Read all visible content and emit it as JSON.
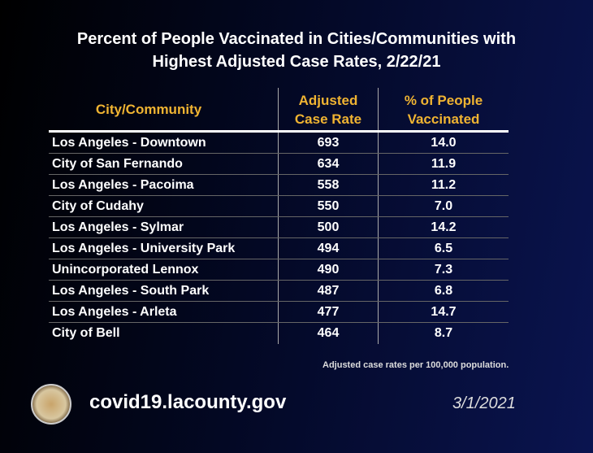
{
  "title": {
    "line1": "Percent of People Vaccinated in Cities/Communities with",
    "line2": "Highest Adjusted Case Rates, 2/22/21"
  },
  "headers": {
    "city": "City/Community",
    "rate_1": "Adjusted",
    "rate_2": "Case Rate",
    "vacc_1": "% of People",
    "vacc_2": "Vaccinated"
  },
  "rows": [
    {
      "city": "Los Angeles - Downtown",
      "rate": "693",
      "vacc": "14.0"
    },
    {
      "city": "City of San Fernando",
      "rate": "634",
      "vacc": "11.9"
    },
    {
      "city": "Los Angeles - Pacoima",
      "rate": "558",
      "vacc": "11.2"
    },
    {
      "city": "City of Cudahy",
      "rate": "550",
      "vacc": "7.0"
    },
    {
      "city": "Los Angeles - Sylmar",
      "rate": "500",
      "vacc": "14.2"
    },
    {
      "city": "Los Angeles - University Park",
      "rate": "494",
      "vacc": "6.5"
    },
    {
      "city": "Unincorporated Lennox",
      "rate": "490",
      "vacc": "7.3"
    },
    {
      "city": "Los Angeles - South Park",
      "rate": "487",
      "vacc": "6.8"
    },
    {
      "city": "Los Angeles - Arleta",
      "rate": "477",
      "vacc": "14.7"
    },
    {
      "city": "City of Bell",
      "rate": "464",
      "vacc": "8.7"
    }
  ],
  "note": "Adjusted case rates per 100,000 population.",
  "footer": {
    "url": "covid19.lacounty.gov",
    "date": "3/1/2021"
  },
  "colors": {
    "header": "#f0b432"
  }
}
